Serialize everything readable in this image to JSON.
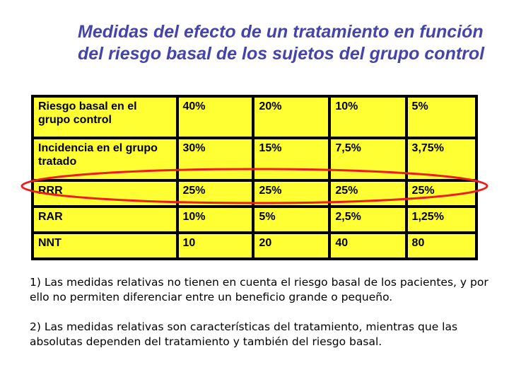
{
  "title": "Medidas del efecto de un tratamiento en función del riesgo basal de los sujetos del grupo control",
  "table": {
    "rows": [
      [
        "Riesgo basal en el grupo control",
        "40%",
        "20%",
        "10%",
        "5%"
      ],
      [
        "Incidencia en el grupo tratado",
        "30%",
        "15%",
        "7,5%",
        "3,75%"
      ],
      [
        "RRR",
        "25%",
        "25%",
        "25%",
        "25%"
      ],
      [
        "RAR",
        "10%",
        "5%",
        "2,5%",
        "1,25%"
      ],
      [
        "NNT",
        "10",
        "20",
        " 40",
        "80"
      ]
    ]
  },
  "highlight_color": "#ee1c1c",
  "notes": [
    "1) Las medidas relativas no tienen en cuenta el riesgo basal  de los pacientes, y por ello no permiten diferenciar entre un beneficio grande o pequeño.",
    "2) Las medidas relativas son características del tratamiento, mientras que las absolutas dependen del tratamiento y también del riesgo basal."
  ]
}
